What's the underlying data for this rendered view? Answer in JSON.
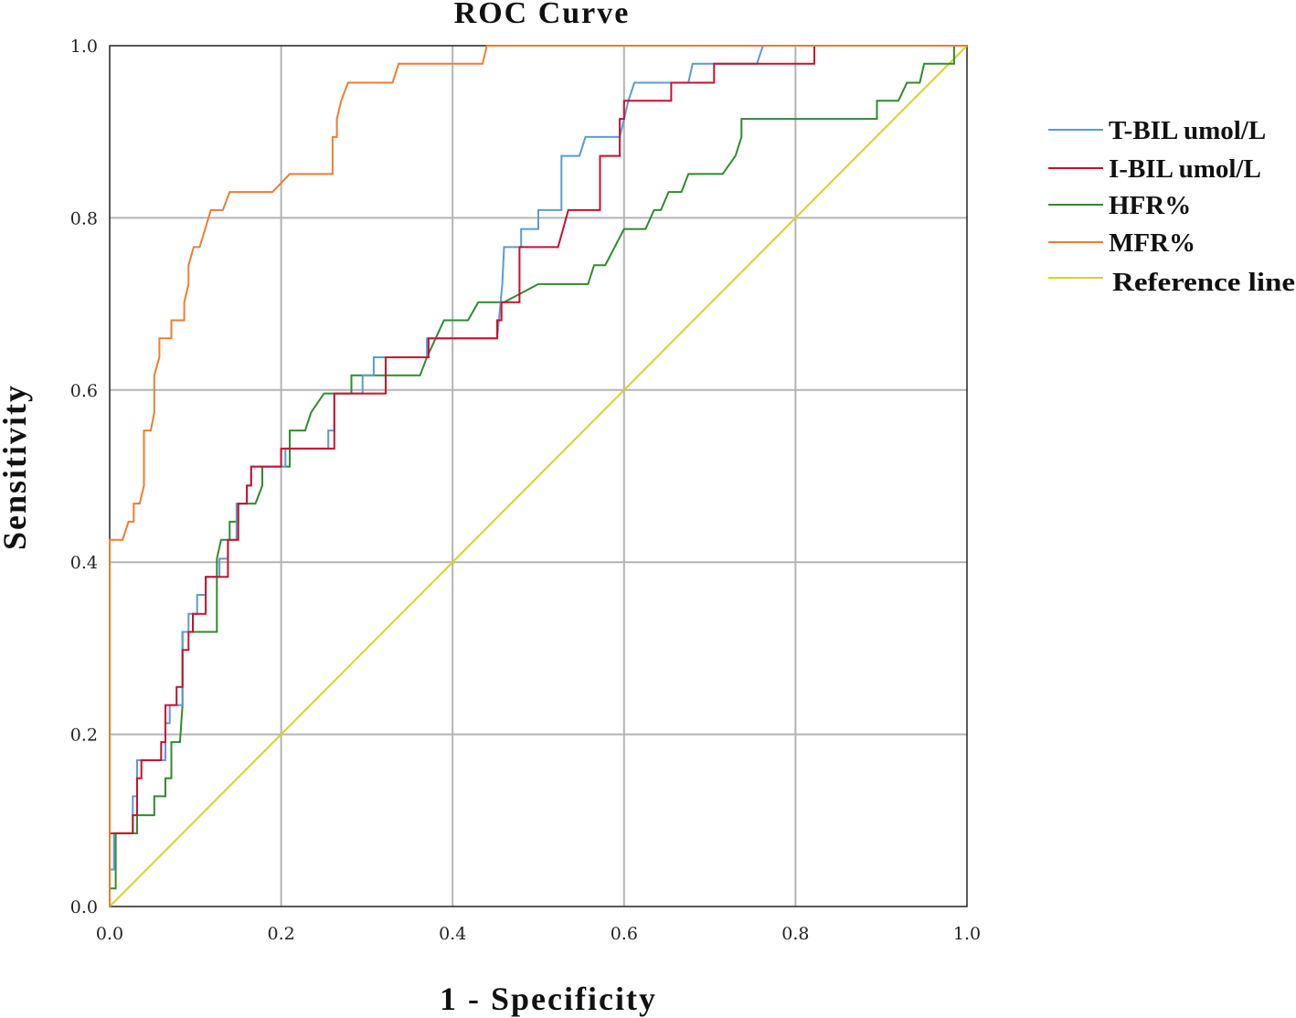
{
  "chart_data": {
    "type": "line",
    "title": "ROC Curve",
    "xlabel": "1 - Specificity",
    "ylabel": "Sensitivity",
    "xlim": [
      0,
      1
    ],
    "ylim": [
      0,
      1
    ],
    "grid": true,
    "legend_position": "right",
    "x_ticks": [
      "0.0",
      "0.2",
      "0.4",
      "0.6",
      "0.8",
      "1.0"
    ],
    "y_ticks": [
      "0.0",
      "0.2",
      "0.4",
      "0.6",
      "0.8",
      "1.0"
    ],
    "series": [
      {
        "name": "T-BIL umol/L",
        "color": "#5b9bd5",
        "points": [
          [
            0,
            0
          ],
          [
            0,
            0.043
          ],
          [
            0.005,
            0.043
          ],
          [
            0.005,
            0.085
          ],
          [
            0.027,
            0.085
          ],
          [
            0.027,
            0.128
          ],
          [
            0.032,
            0.128
          ],
          [
            0.032,
            0.17
          ],
          [
            0.048,
            0.17
          ],
          [
            0.065,
            0.17
          ],
          [
            0.065,
            0.213
          ],
          [
            0.07,
            0.213
          ],
          [
            0.07,
            0.234
          ],
          [
            0.085,
            0.234
          ],
          [
            0.085,
            0.319
          ],
          [
            0.092,
            0.319
          ],
          [
            0.092,
            0.34
          ],
          [
            0.102,
            0.34
          ],
          [
            0.102,
            0.362
          ],
          [
            0.112,
            0.362
          ],
          [
            0.112,
            0.383
          ],
          [
            0.128,
            0.383
          ],
          [
            0.128,
            0.404
          ],
          [
            0.138,
            0.404
          ],
          [
            0.138,
            0.426
          ],
          [
            0.148,
            0.426
          ],
          [
            0.148,
            0.468
          ],
          [
            0.16,
            0.468
          ],
          [
            0.16,
            0.489
          ],
          [
            0.165,
            0.489
          ],
          [
            0.165,
            0.511
          ],
          [
            0.205,
            0.511
          ],
          [
            0.205,
            0.532
          ],
          [
            0.255,
            0.532
          ],
          [
            0.255,
            0.553
          ],
          [
            0.262,
            0.553
          ],
          [
            0.262,
            0.596
          ],
          [
            0.295,
            0.596
          ],
          [
            0.295,
            0.617
          ],
          [
            0.308,
            0.617
          ],
          [
            0.308,
            0.638
          ],
          [
            0.37,
            0.638
          ],
          [
            0.37,
            0.66
          ],
          [
            0.452,
            0.66
          ],
          [
            0.458,
            0.723
          ],
          [
            0.46,
            0.766
          ],
          [
            0.48,
            0.766
          ],
          [
            0.48,
            0.787
          ],
          [
            0.5,
            0.787
          ],
          [
            0.5,
            0.809
          ],
          [
            0.527,
            0.809
          ],
          [
            0.527,
            0.872
          ],
          [
            0.548,
            0.872
          ],
          [
            0.555,
            0.894
          ],
          [
            0.595,
            0.894
          ],
          [
            0.6,
            0.915
          ],
          [
            0.605,
            0.936
          ],
          [
            0.612,
            0.957
          ],
          [
            0.675,
            0.957
          ],
          [
            0.68,
            0.979
          ],
          [
            0.755,
            0.979
          ],
          [
            0.762,
            1.0
          ],
          [
            1.0,
            1.0
          ]
        ]
      },
      {
        "name": "I-BIL umol/L",
        "color": "#c8102e",
        "points": [
          [
            0,
            0
          ],
          [
            0,
            0.085
          ],
          [
            0.027,
            0.085
          ],
          [
            0.027,
            0.106
          ],
          [
            0.032,
            0.106
          ],
          [
            0.032,
            0.149
          ],
          [
            0.037,
            0.149
          ],
          [
            0.037,
            0.17
          ],
          [
            0.06,
            0.17
          ],
          [
            0.06,
            0.191
          ],
          [
            0.065,
            0.191
          ],
          [
            0.065,
            0.234
          ],
          [
            0.078,
            0.234
          ],
          [
            0.078,
            0.255
          ],
          [
            0.085,
            0.255
          ],
          [
            0.085,
            0.298
          ],
          [
            0.092,
            0.298
          ],
          [
            0.092,
            0.319
          ],
          [
            0.097,
            0.319
          ],
          [
            0.097,
            0.34
          ],
          [
            0.112,
            0.34
          ],
          [
            0.112,
            0.383
          ],
          [
            0.138,
            0.383
          ],
          [
            0.138,
            0.426
          ],
          [
            0.15,
            0.426
          ],
          [
            0.15,
            0.468
          ],
          [
            0.16,
            0.468
          ],
          [
            0.16,
            0.489
          ],
          [
            0.165,
            0.489
          ],
          [
            0.165,
            0.511
          ],
          [
            0.2,
            0.511
          ],
          [
            0.2,
            0.532
          ],
          [
            0.262,
            0.532
          ],
          [
            0.262,
            0.596
          ],
          [
            0.322,
            0.596
          ],
          [
            0.322,
            0.638
          ],
          [
            0.372,
            0.638
          ],
          [
            0.372,
            0.66
          ],
          [
            0.452,
            0.66
          ],
          [
            0.452,
            0.681
          ],
          [
            0.457,
            0.681
          ],
          [
            0.457,
            0.702
          ],
          [
            0.478,
            0.702
          ],
          [
            0.478,
            0.766
          ],
          [
            0.523,
            0.766
          ],
          [
            0.535,
            0.809
          ],
          [
            0.572,
            0.809
          ],
          [
            0.572,
            0.872
          ],
          [
            0.595,
            0.872
          ],
          [
            0.595,
            0.915
          ],
          [
            0.6,
            0.915
          ],
          [
            0.6,
            0.936
          ],
          [
            0.655,
            0.936
          ],
          [
            0.655,
            0.957
          ],
          [
            0.705,
            0.957
          ],
          [
            0.705,
            0.979
          ],
          [
            0.822,
            0.979
          ],
          [
            0.822,
            1.0
          ],
          [
            1.0,
            1.0
          ]
        ]
      },
      {
        "name": "HFR%",
        "color": "#2e8b2e",
        "points": [
          [
            0,
            0
          ],
          [
            0,
            0.021
          ],
          [
            0.007,
            0.021
          ],
          [
            0.007,
            0.085
          ],
          [
            0.032,
            0.085
          ],
          [
            0.032,
            0.106
          ],
          [
            0.052,
            0.106
          ],
          [
            0.052,
            0.128
          ],
          [
            0.065,
            0.128
          ],
          [
            0.065,
            0.149
          ],
          [
            0.072,
            0.149
          ],
          [
            0.072,
            0.191
          ],
          [
            0.082,
            0.191
          ],
          [
            0.085,
            0.234
          ],
          [
            0.085,
            0.319
          ],
          [
            0.125,
            0.319
          ],
          [
            0.125,
            0.404
          ],
          [
            0.13,
            0.426
          ],
          [
            0.14,
            0.426
          ],
          [
            0.14,
            0.447
          ],
          [
            0.15,
            0.447
          ],
          [
            0.15,
            0.468
          ],
          [
            0.17,
            0.468
          ],
          [
            0.178,
            0.489
          ],
          [
            0.178,
            0.511
          ],
          [
            0.21,
            0.511
          ],
          [
            0.21,
            0.553
          ],
          [
            0.228,
            0.553
          ],
          [
            0.235,
            0.574
          ],
          [
            0.25,
            0.596
          ],
          [
            0.282,
            0.596
          ],
          [
            0.282,
            0.617
          ],
          [
            0.362,
            0.617
          ],
          [
            0.37,
            0.638
          ],
          [
            0.39,
            0.681
          ],
          [
            0.418,
            0.681
          ],
          [
            0.43,
            0.702
          ],
          [
            0.46,
            0.702
          ],
          [
            0.5,
            0.723
          ],
          [
            0.558,
            0.723
          ],
          [
            0.565,
            0.745
          ],
          [
            0.578,
            0.745
          ],
          [
            0.6,
            0.787
          ],
          [
            0.625,
            0.787
          ],
          [
            0.635,
            0.809
          ],
          [
            0.643,
            0.809
          ],
          [
            0.652,
            0.83
          ],
          [
            0.667,
            0.83
          ],
          [
            0.675,
            0.851
          ],
          [
            0.715,
            0.851
          ],
          [
            0.73,
            0.872
          ],
          [
            0.737,
            0.894
          ],
          [
            0.737,
            0.915
          ],
          [
            0.895,
            0.915
          ],
          [
            0.895,
            0.936
          ],
          [
            0.92,
            0.936
          ],
          [
            0.93,
            0.957
          ],
          [
            0.945,
            0.957
          ],
          [
            0.95,
            0.979
          ],
          [
            0.985,
            0.979
          ],
          [
            0.985,
            1.0
          ],
          [
            1.0,
            1.0
          ]
        ]
      },
      {
        "name": "MFR%",
        "color": "#ed7d31",
        "points": [
          [
            0,
            0
          ],
          [
            0,
            0.426
          ],
          [
            0.015,
            0.426
          ],
          [
            0.022,
            0.447
          ],
          [
            0.028,
            0.447
          ],
          [
            0.028,
            0.468
          ],
          [
            0.035,
            0.468
          ],
          [
            0.04,
            0.489
          ],
          [
            0.04,
            0.553
          ],
          [
            0.048,
            0.553
          ],
          [
            0.052,
            0.574
          ],
          [
            0.052,
            0.617
          ],
          [
            0.058,
            0.638
          ],
          [
            0.058,
            0.66
          ],
          [
            0.072,
            0.66
          ],
          [
            0.072,
            0.681
          ],
          [
            0.087,
            0.681
          ],
          [
            0.087,
            0.702
          ],
          [
            0.092,
            0.723
          ],
          [
            0.092,
            0.745
          ],
          [
            0.098,
            0.766
          ],
          [
            0.105,
            0.766
          ],
          [
            0.118,
            0.809
          ],
          [
            0.132,
            0.809
          ],
          [
            0.14,
            0.83
          ],
          [
            0.19,
            0.83
          ],
          [
            0.21,
            0.851
          ],
          [
            0.26,
            0.851
          ],
          [
            0.26,
            0.894
          ],
          [
            0.265,
            0.894
          ],
          [
            0.265,
            0.915
          ],
          [
            0.27,
            0.936
          ],
          [
            0.278,
            0.957
          ],
          [
            0.33,
            0.957
          ],
          [
            0.337,
            0.979
          ],
          [
            0.435,
            0.979
          ],
          [
            0.44,
            1.0
          ],
          [
            1.0,
            1.0
          ]
        ]
      },
      {
        "name": "Reference line",
        "color": "#d4d42a",
        "points": [
          [
            0,
            0
          ],
          [
            1,
            1
          ]
        ]
      }
    ]
  }
}
